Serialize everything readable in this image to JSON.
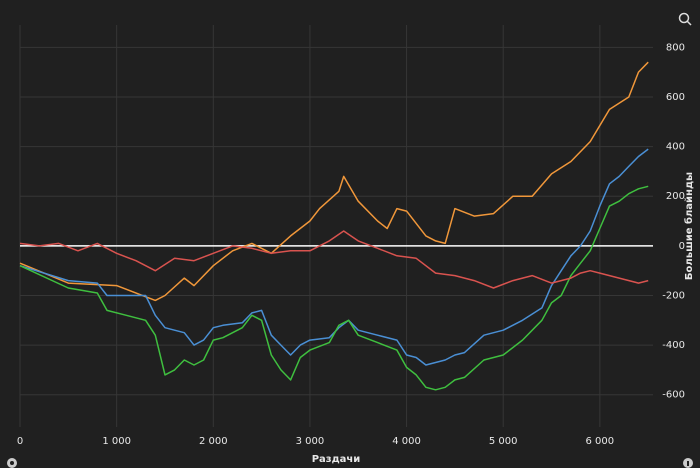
{
  "chart_data": {
    "type": "line",
    "xlabel": "Раздачи",
    "ylabel": "Большие блайнды",
    "xlim": [
      0,
      6550
    ],
    "ylim": [
      -730,
      890
    ],
    "xticks": [
      0,
      {
        "value": 1000,
        "label": "1 000"
      },
      {
        "value": 2000,
        "label": "2 000"
      },
      {
        "value": 3000,
        "label": "3 000"
      },
      {
        "value": 4000,
        "label": "4 000"
      },
      {
        "value": 5000,
        "label": "5 000"
      },
      {
        "value": 6000,
        "label": "6 000"
      }
    ],
    "yticks": [
      -600,
      -400,
      -200,
      0,
      200,
      400,
      600,
      800
    ],
    "grid": true,
    "series": [
      {
        "color": "#f0973a",
        "x": [
          0,
          500,
          1000,
          1400,
          1500,
          1700,
          1800,
          2000,
          2200,
          2400,
          2600,
          2800,
          3000,
          3100,
          3300,
          3350,
          3500,
          3700,
          3800,
          3900,
          4000,
          4200,
          4300,
          4400,
          4500,
          4700,
          4900,
          5100,
          5300,
          5500,
          5700,
          5900,
          6100,
          6300,
          6400,
          6500
        ],
        "values": [
          -70,
          -150,
          -160,
          -220,
          -200,
          -130,
          -160,
          -80,
          -20,
          10,
          -30,
          40,
          100,
          150,
          220,
          280,
          180,
          100,
          70,
          150,
          140,
          40,
          20,
          10,
          150,
          120,
          130,
          200,
          200,
          290,
          340,
          420,
          550,
          600,
          700,
          740
        ]
      },
      {
        "color": "#4a8fd4",
        "x": [
          0,
          500,
          800,
          900,
          1100,
          1300,
          1400,
          1500,
          1600,
          1700,
          1800,
          1900,
          2000,
          2100,
          2300,
          2400,
          2500,
          2600,
          2700,
          2800,
          2900,
          3000,
          3200,
          3300,
          3400,
          3500,
          3700,
          3900,
          4000,
          4100,
          4200,
          4400,
          4500,
          4600,
          4800,
          5000,
          5200,
          5400,
          5500,
          5600,
          5700,
          5800,
          5900,
          6000,
          6100,
          6200,
          6300,
          6400,
          6500
        ],
        "values": [
          -80,
          -140,
          -150,
          -200,
          -200,
          -200,
          -280,
          -330,
          -340,
          -350,
          -400,
          -380,
          -330,
          -320,
          -310,
          -270,
          -260,
          -360,
          -400,
          -440,
          -400,
          -380,
          -370,
          -330,
          -300,
          -340,
          -360,
          -380,
          -440,
          -450,
          -480,
          -460,
          -440,
          -430,
          -360,
          -340,
          -300,
          -250,
          -160,
          -100,
          -40,
          0,
          60,
          160,
          250,
          280,
          320,
          360,
          390
        ]
      },
      {
        "color": "#3fbf3f",
        "x": [
          0,
          500,
          800,
          900,
          1100,
          1300,
          1400,
          1500,
          1600,
          1700,
          1800,
          1900,
          2000,
          2100,
          2300,
          2400,
          2500,
          2600,
          2700,
          2800,
          2900,
          3000,
          3200,
          3300,
          3400,
          3500,
          3700,
          3900,
          4000,
          4100,
          4200,
          4300,
          4400,
          4500,
          4600,
          4800,
          5000,
          5200,
          5400,
          5500,
          5600,
          5700,
          5800,
          5900,
          6000,
          6100,
          6200,
          6300,
          6400,
          6500
        ],
        "values": [
          -80,
          -170,
          -190,
          -260,
          -280,
          -300,
          -360,
          -520,
          -500,
          -460,
          -480,
          -460,
          -380,
          -370,
          -330,
          -280,
          -300,
          -440,
          -500,
          -540,
          -450,
          -420,
          -390,
          -320,
          -300,
          -360,
          -390,
          -420,
          -490,
          -520,
          -570,
          -580,
          -570,
          -540,
          -530,
          -460,
          -440,
          -380,
          -300,
          -230,
          -200,
          -120,
          -70,
          -20,
          70,
          160,
          180,
          210,
          230,
          240
        ]
      },
      {
        "color": "#d9534f",
        "x": [
          0,
          200,
          400,
          600,
          800,
          1000,
          1200,
          1400,
          1600,
          1800,
          2000,
          2200,
          2400,
          2600,
          2800,
          3000,
          3200,
          3350,
          3500,
          3700,
          3900,
          4100,
          4300,
          4500,
          4700,
          4900,
          5100,
          5300,
          5500,
          5700,
          5800,
          5900,
          6000,
          6200,
          6400,
          6500
        ],
        "values": [
          10,
          0,
          10,
          -20,
          10,
          -30,
          -60,
          -100,
          -50,
          -60,
          -30,
          0,
          -10,
          -30,
          -20,
          -20,
          20,
          60,
          20,
          -10,
          -40,
          -50,
          -110,
          -120,
          -140,
          -170,
          -140,
          -120,
          -150,
          -130,
          -110,
          -100,
          -110,
          -130,
          -150,
          -140
        ]
      }
    ]
  }
}
